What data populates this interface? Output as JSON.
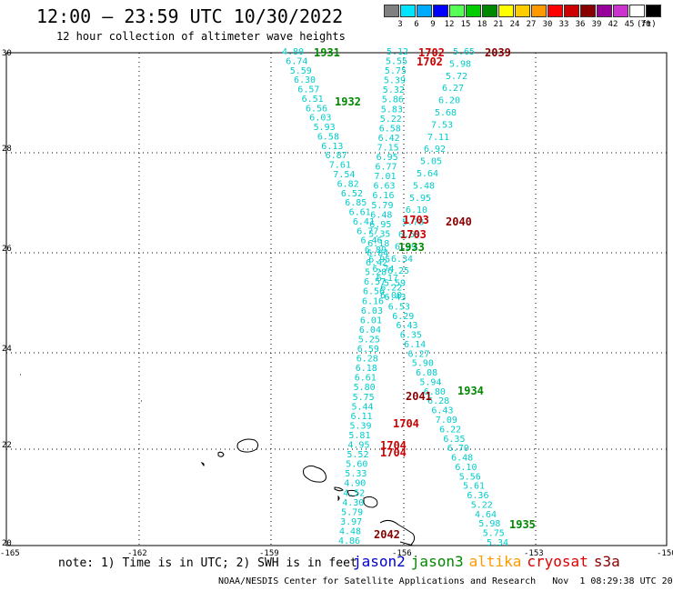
{
  "title": "12:00 – 23:59 UTC 10/30/2022",
  "subtitle": "12 hour collection of altimeter wave heights",
  "legend": {
    "unit": "(ft)",
    "colors": [
      "#808080",
      "#00e5ff",
      "#00aaff",
      "#0000ff",
      "#55ff55",
      "#00cc00",
      "#008800",
      "#ffff00",
      "#ffcc00",
      "#ff9900",
      "#ff0000",
      "#cc0000",
      "#880000",
      "#990099",
      "#cc33cc",
      "#ffffff",
      "#000000"
    ],
    "labels": [
      "3",
      "6",
      "9",
      "12",
      "15",
      "18",
      "21",
      "24",
      "27",
      "30",
      "33",
      "36",
      "39",
      "42",
      "45",
      "70"
    ]
  },
  "axes": {
    "lat": [
      "30",
      "28",
      "26",
      "24",
      "22",
      "20"
    ],
    "lon": [
      "-165",
      "-162",
      "-159",
      "-156",
      "-153",
      "-150"
    ]
  },
  "passes": [
    {
      "text": "1931",
      "color": "#008800"
    },
    {
      "text": "1932",
      "color": "#008800"
    },
    {
      "text": "1702",
      "color": "#cc0000"
    },
    {
      "text": "1702",
      "color": "#cc0000"
    },
    {
      "text": "2039",
      "color": "#880000"
    },
    {
      "text": "1703",
      "color": "#cc0000"
    },
    {
      "text": "1703",
      "color": "#cc0000"
    },
    {
      "text": "2040",
      "color": "#880000"
    },
    {
      "text": "1933",
      "color": "#008800"
    },
    {
      "text": "2041",
      "color": "#880000"
    },
    {
      "text": "1934",
      "color": "#008800"
    },
    {
      "text": "1704",
      "color": "#cc0000"
    },
    {
      "text": "1704",
      "color": "#cc0000"
    },
    {
      "text": "1704",
      "color": "#cc0000"
    },
    {
      "text": "2042",
      "color": "#880000"
    },
    {
      "text": "1935",
      "color": "#008800"
    }
  ],
  "track_a": [
    "4.80",
    "6.74",
    "5.59",
    "6.30",
    "6.57",
    "6.51",
    "6.56",
    "6.03",
    "5.93",
    "6.58",
    "6.13",
    "6.87",
    "7.61",
    "7.54",
    "6.82",
    "6.52",
    "6.85",
    "6.61",
    "6.41",
    "6.77",
    "6.46",
    "6.89",
    "6.95",
    "6.74",
    "6.17",
    "6.22",
    "6.43",
    "6.53",
    "6.29",
    "6.43",
    "6.35",
    "6.14",
    "6.27",
    "5.90",
    "6.08",
    "5.94",
    "6.80",
    "6.28",
    "6.43",
    "7.09",
    "6.22",
    "6.35",
    "6.70",
    "6.48",
    "6.10",
    "5.56",
    "5.61",
    "6.36",
    "5.22",
    "4.64",
    "5.98",
    "5.75",
    "5.34"
  ],
  "track_b": [
    "5.65",
    "5.98",
    "5.72",
    "6.27",
    "6.20",
    "5.68",
    "7.53",
    "7.11",
    "6.92",
    "5.05",
    "5.64",
    "5.48",
    "5.95",
    "6.10",
    "5.78",
    "6.59",
    "6.39",
    "6.34",
    "6.25",
    "5.59",
    "6.00"
  ],
  "track_c": [
    "5.12",
    "5.55",
    "5.75",
    "5.39",
    "5.32",
    "5.86",
    "5.83",
    "5.22",
    "6.58",
    "6.42",
    "7.15",
    "6.95",
    "6.77",
    "7.01",
    "6.63",
    "6.16",
    "5.79",
    "6.48",
    "6.95",
    "5.35",
    "6.18",
    "6.84",
    "6.42",
    "5.28",
    "6.57",
    "6.56",
    "6.16",
    "6.03",
    "6.01",
    "6.04",
    "5.25",
    "6.59",
    "6.28",
    "6.18",
    "6.61",
    "5.80",
    "5.75",
    "5.44",
    "6.11",
    "5.39",
    "5.81",
    "4.95",
    "5.52",
    "5.60",
    "5.33",
    "4.90",
    "4.52",
    "4.30",
    "5.79",
    "3.97",
    "4.48",
    "4.86"
  ],
  "note": "note: 1) Time is in UTC; 2) SWH is in feet",
  "satellites": [
    {
      "name": "jason2",
      "color": "#0000cc"
    },
    {
      "name": "jason3",
      "color": "#008800"
    },
    {
      "name": "altika",
      "color": "#ff9900"
    },
    {
      "name": "cryosat",
      "color": "#dd0000"
    },
    {
      "name": "s3a",
      "color": "#880000"
    }
  ],
  "credit": "NOAA/NESDIS Center for Satellite Applications and Research   Nov  1 08:29:38 UTC 2022"
}
